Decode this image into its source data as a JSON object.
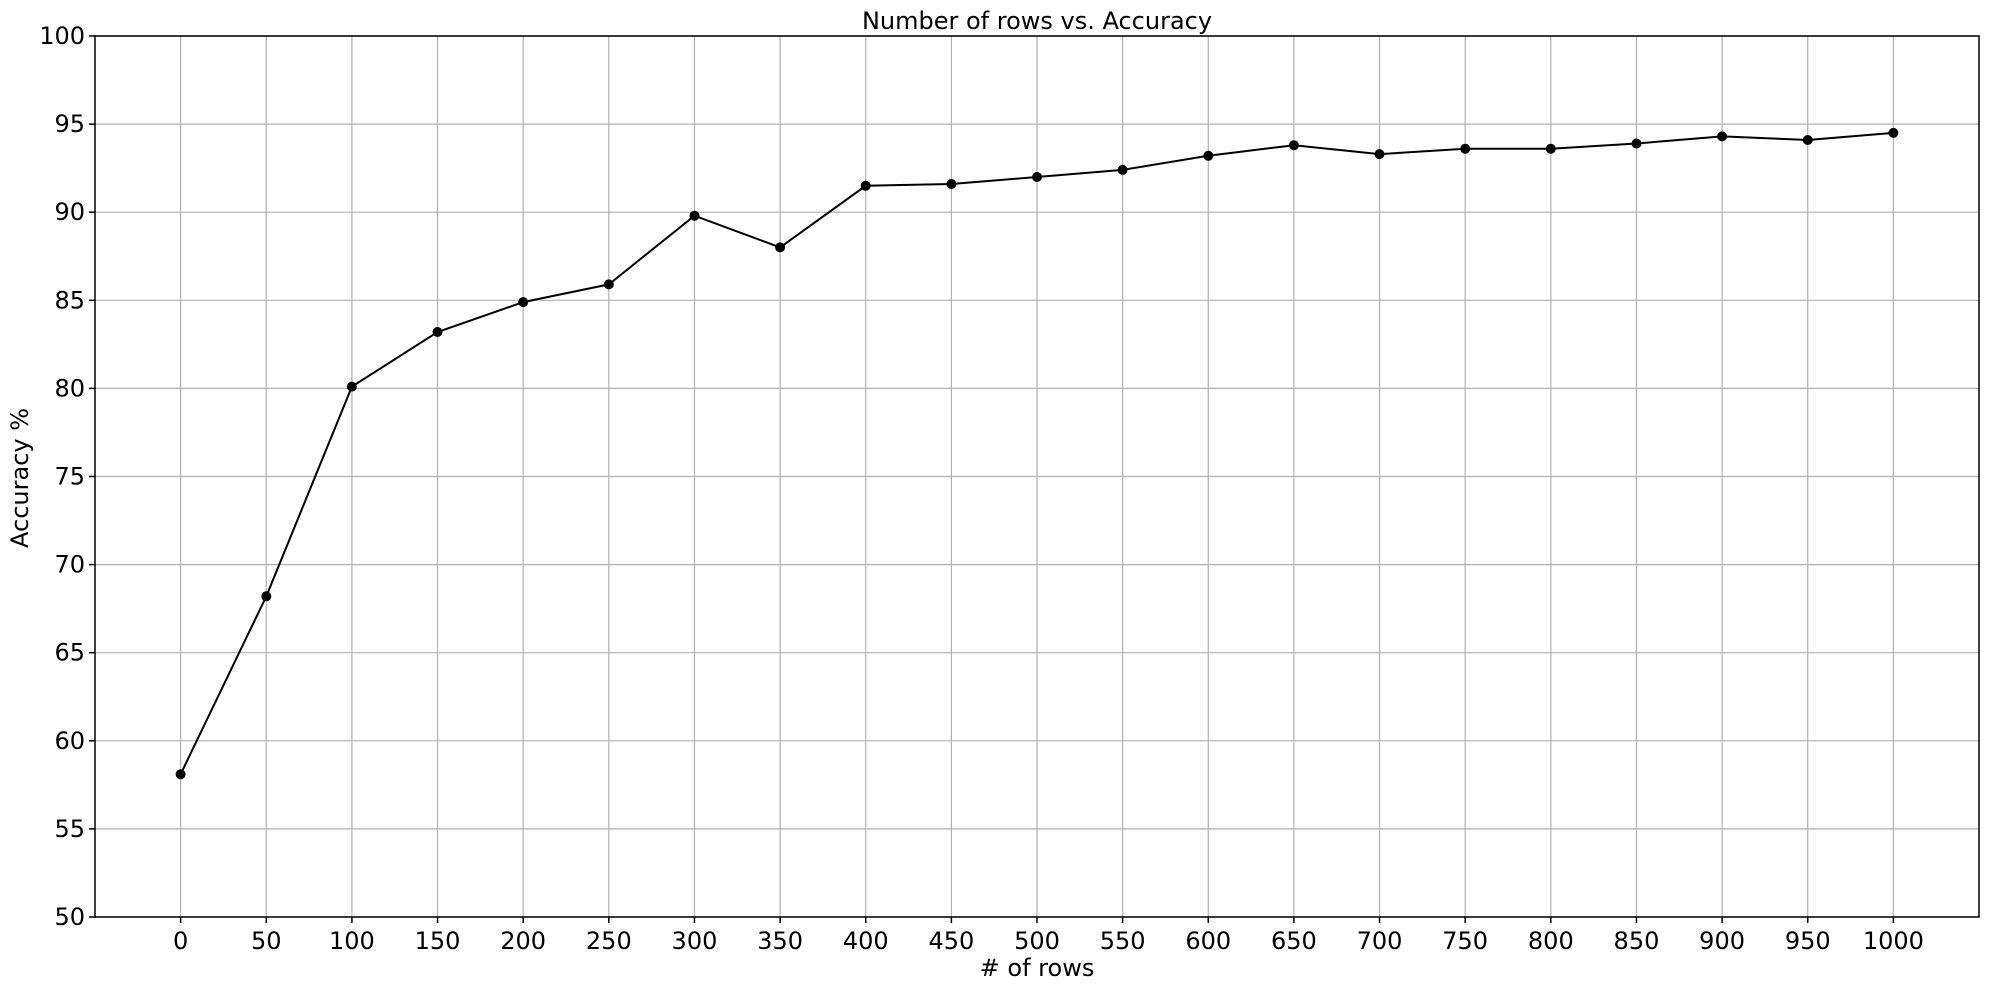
{
  "chart_data": {
    "type": "line",
    "title": "Number of rows vs. Accuracy",
    "xlabel": "# of rows",
    "ylabel": "Accuracy %",
    "x": [
      0,
      50,
      100,
      150,
      200,
      250,
      300,
      350,
      400,
      450,
      500,
      550,
      600,
      650,
      700,
      750,
      800,
      850,
      900,
      950,
      1000
    ],
    "series": [
      {
        "values": [
          58.1,
          68.2,
          80.1,
          83.2,
          84.9,
          85.9,
          89.8,
          88.0,
          91.5,
          91.6,
          92.0,
          92.4,
          93.2,
          93.8,
          93.3,
          93.6,
          93.6,
          93.9,
          94.3,
          94.1,
          94.5
        ]
      }
    ],
    "xticks": [
      "0",
      "50",
      "100",
      "150",
      "200",
      "250",
      "300",
      "350",
      "400",
      "450",
      "500",
      "550",
      "600",
      "650",
      "700",
      "750",
      "800",
      "850",
      "900",
      "950",
      "1000"
    ],
    "yticks": [
      "50",
      "55",
      "60",
      "65",
      "70",
      "75",
      "80",
      "85",
      "90",
      "95",
      "100"
    ],
    "xlim": [
      -50,
      1050
    ],
    "ylim": [
      50,
      100
    ],
    "grid": true,
    "colors": {
      "line": "#000000",
      "marker": "#000000",
      "grid": "#b0b0b0"
    }
  }
}
